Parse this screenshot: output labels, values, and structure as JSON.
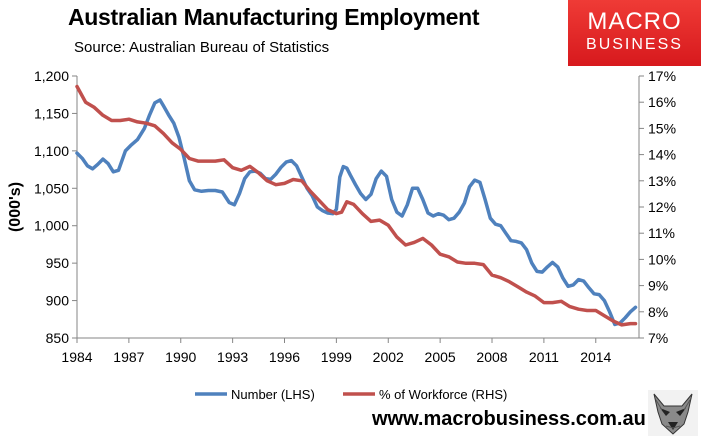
{
  "header": {
    "title": "Australian Manufacturing Employment",
    "subtitle": "Source: Australian Bureau of Statistics"
  },
  "logo": {
    "line1": "MACRO",
    "line2": "BUSINESS"
  },
  "footer": {
    "website": "www.macrobusiness.com.au",
    "mascot_icon": "wolf-head-icon"
  },
  "colors": {
    "number_series": "#4f81bd",
    "percent_series": "#c0504d",
    "logo_red": "#e0201f"
  },
  "chart_data": {
    "type": "line",
    "title": "Australian Manufacturing Employment",
    "ylabel": "(000's)",
    "xlim": [
      1984,
      2016.5
    ],
    "ylim_left": [
      850,
      1200
    ],
    "ylim_right": [
      7,
      17
    ],
    "x_ticks": [
      1984,
      1987,
      1990,
      1993,
      1996,
      1999,
      2002,
      2005,
      2008,
      2011,
      2014
    ],
    "x_tick_labels": [
      "1984",
      "1987",
      "1990",
      "1993",
      "1996",
      "1999",
      "2002",
      "2005",
      "2008",
      "2011",
      "2014"
    ],
    "y_left_ticks": [
      850,
      900,
      950,
      1000,
      1050,
      1100,
      1150,
      1200
    ],
    "y_left_tick_labels": [
      "850",
      "900",
      "950",
      "1,000",
      "1,050",
      "1,100",
      "1,150",
      "1,200"
    ],
    "y_right_ticks": [
      7,
      8,
      9,
      10,
      11,
      12,
      13,
      14,
      15,
      16,
      17
    ],
    "y_right_tick_labels": [
      "7%",
      "8%",
      "9%",
      "10%",
      "11%",
      "12%",
      "13%",
      "14%",
      "15%",
      "16%",
      "17%"
    ],
    "grid": false,
    "legend_position": "bottom",
    "series": [
      {
        "name": "Number (LHS)",
        "axis": "left",
        "x": [
          1984.0,
          1984.3,
          1984.6,
          1984.9,
          1985.2,
          1985.5,
          1985.8,
          1986.1,
          1986.4,
          1986.8,
          1987.1,
          1987.5,
          1987.9,
          1988.2,
          1988.5,
          1988.8,
          1989.0,
          1989.3,
          1989.6,
          1989.9,
          1990.2,
          1990.5,
          1990.8,
          1991.2,
          1991.6,
          1992.0,
          1992.4,
          1992.8,
          1993.1,
          1993.4,
          1993.7,
          1994.0,
          1994.3,
          1994.6,
          1994.9,
          1995.2,
          1995.5,
          1995.8,
          1996.1,
          1996.4,
          1996.7,
          1997.0,
          1997.3,
          1997.6,
          1997.9,
          1998.2,
          1998.5,
          1998.8,
          1999.0,
          1999.2,
          1999.4,
          1999.6,
          1999.8,
          2000.1,
          2000.4,
          2000.7,
          2001.0,
          2001.3,
          2001.6,
          2001.9,
          2002.2,
          2002.5,
          2002.8,
          2003.1,
          2003.4,
          2003.7,
          2004.0,
          2004.3,
          2004.6,
          2004.9,
          2005.2,
          2005.5,
          2005.8,
          2006.1,
          2006.4,
          2006.7,
          2007.0,
          2007.3,
          2007.6,
          2007.9,
          2008.2,
          2008.5,
          2008.8,
          2009.1,
          2009.4,
          2009.7,
          2010.0,
          2010.3,
          2010.6,
          2010.9,
          2011.2,
          2011.5,
          2011.8,
          2012.1,
          2012.4,
          2012.7,
          2013.0,
          2013.3,
          2013.6,
          2013.9,
          2014.2,
          2014.5,
          2014.8,
          2015.1,
          2015.4,
          2015.7,
          2016.0,
          2016.3
        ],
        "values": [
          1097,
          1090,
          1080,
          1076,
          1082,
          1089,
          1083,
          1072,
          1074,
          1100,
          1107,
          1115,
          1130,
          1148,
          1164,
          1168,
          1160,
          1148,
          1137,
          1118,
          1090,
          1060,
          1048,
          1046,
          1047,
          1047,
          1045,
          1031,
          1028,
          1043,
          1063,
          1072,
          1073,
          1070,
          1063,
          1062,
          1069,
          1078,
          1085,
          1087,
          1080,
          1065,
          1050,
          1040,
          1025,
          1020,
          1017,
          1016,
          1022,
          1065,
          1079,
          1077,
          1068,
          1055,
          1043,
          1035,
          1042,
          1063,
          1073,
          1066,
          1035,
          1018,
          1013,
          1028,
          1050,
          1050,
          1035,
          1017,
          1013,
          1016,
          1014,
          1008,
          1010,
          1018,
          1030,
          1052,
          1061,
          1058,
          1035,
          1010,
          1002,
          1000,
          990,
          980,
          979,
          977,
          968,
          950,
          939,
          938,
          945,
          951,
          945,
          930,
          919,
          921,
          928,
          926,
          917,
          909,
          908,
          900,
          885,
          868,
          870,
          877,
          885,
          891
        ]
      },
      {
        "name": "% of Workforce (RHS)",
        "axis": "right",
        "x": [
          1984.0,
          1984.5,
          1985.0,
          1985.5,
          1986.0,
          1986.5,
          1987.0,
          1987.5,
          1988.0,
          1988.5,
          1989.0,
          1989.5,
          1990.0,
          1990.5,
          1991.0,
          1991.5,
          1992.0,
          1992.5,
          1993.0,
          1993.5,
          1994.0,
          1994.5,
          1995.0,
          1995.5,
          1996.0,
          1996.5,
          1997.0,
          1997.5,
          1998.0,
          1998.5,
          1999.0,
          1999.3,
          1999.6,
          2000.0,
          2000.5,
          2001.0,
          2001.5,
          2002.0,
          2002.5,
          2003.0,
          2003.5,
          2004.0,
          2004.5,
          2005.0,
          2005.5,
          2006.0,
          2006.5,
          2007.0,
          2007.5,
          2008.0,
          2008.5,
          2009.0,
          2009.5,
          2010.0,
          2010.5,
          2011.0,
          2011.5,
          2012.0,
          2012.5,
          2013.0,
          2013.5,
          2014.0,
          2014.5,
          2015.0,
          2015.5,
          2016.0,
          2016.3
        ],
        "values": [
          16.6,
          16.0,
          15.8,
          15.5,
          15.3,
          15.3,
          15.35,
          15.25,
          15.2,
          15.1,
          14.8,
          14.45,
          14.2,
          13.85,
          13.75,
          13.75,
          13.75,
          13.8,
          13.5,
          13.4,
          13.55,
          13.3,
          13.0,
          12.85,
          12.9,
          13.05,
          13.0,
          12.6,
          12.25,
          11.9,
          11.75,
          11.8,
          12.2,
          12.1,
          11.75,
          11.45,
          11.5,
          11.3,
          10.85,
          10.55,
          10.65,
          10.8,
          10.55,
          10.2,
          10.1,
          9.9,
          9.85,
          9.85,
          9.8,
          9.4,
          9.3,
          9.15,
          8.95,
          8.75,
          8.6,
          8.35,
          8.35,
          8.4,
          8.2,
          8.1,
          8.05,
          8.05,
          7.85,
          7.65,
          7.5,
          7.55,
          7.55
        ]
      }
    ]
  }
}
